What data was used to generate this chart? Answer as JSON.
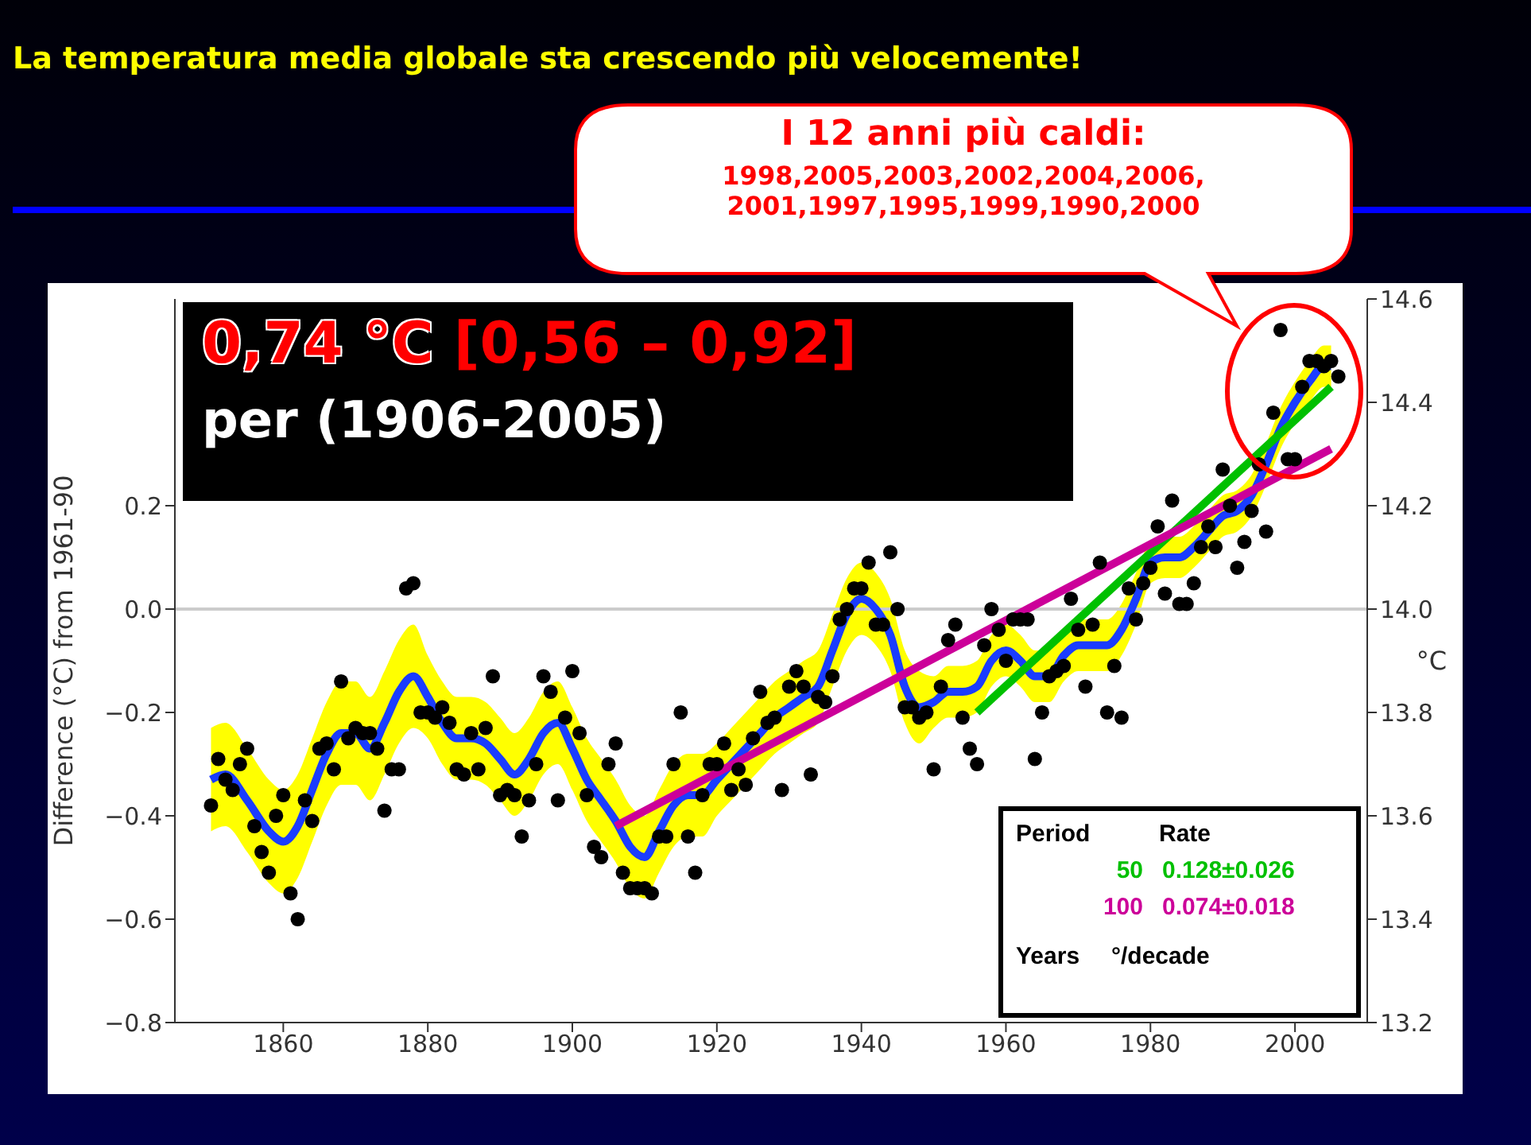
{
  "chart_data": {
    "type": "line",
    "title": "La temperatura media globale sta crescendo più velocemente!",
    "ylabel": "Difference (°C) from 1961-90",
    "y2label": "°C",
    "xlim": [
      1845,
      2010
    ],
    "xticks": [
      1860,
      1880,
      1900,
      1920,
      1940,
      1960,
      1980,
      2000
    ],
    "ylim": [
      -0.8,
      0.6
    ],
    "yticks": [
      {
        "value": -0.8,
        "label": "−0.8"
      },
      {
        "value": -0.6,
        "label": "−0.6"
      },
      {
        "value": -0.4,
        "label": "−0.4"
      },
      {
        "value": -0.2,
        "label": "−0.2"
      },
      {
        "value": 0,
        "label": "0.0"
      },
      {
        "value": 0.2,
        "label": "0.2"
      }
    ],
    "y2lim": [
      13.2,
      14.6
    ],
    "y2ticks": [
      13.2,
      13.4,
      13.6,
      13.8,
      {
        "value": 14,
        "label": "14.0"
      },
      14.2,
      14.4,
      14.6
    ],
    "ref_lines": [
      {
        "axis": "y",
        "value": 0,
        "color": "#cccccc"
      }
    ],
    "annotations": [
      "I 12 anni più caldi:",
      "1998,2005,2003,2002,2004,2006,",
      "2001,1997,1995,1999,1990,2000",
      "0,74 °C",
      "[0,56 – 0,92]",
      "per (1906-2005)",
      "Period",
      "Rate",
      "0.128±0.026",
      "0.074±0.018",
      "Years",
      "°/decade"
    ],
    "series": [
      {
        "type": "scatter",
        "color": "#000000",
        "marker": "circle",
        "x": [
          1850,
          1851,
          1852,
          1853,
          1854,
          1855,
          1856,
          1857,
          1858,
          1859,
          1860,
          1861,
          1862,
          1863,
          1864,
          1865,
          1866,
          1867,
          1868,
          1869,
          1870,
          1871,
          1872,
          1873,
          1874,
          1875,
          1876,
          1877,
          1878,
          1879,
          1880,
          1881,
          1882,
          1883,
          1884,
          1885,
          1886,
          1887,
          1888,
          1889,
          1890,
          1891,
          1892,
          1893,
          1894,
          1895,
          1896,
          1897,
          1898,
          1899,
          1900,
          1901,
          1902,
          1903,
          1904,
          1905,
          1906,
          1907,
          1908,
          1909,
          1910,
          1911,
          1912,
          1913,
          1914,
          1915,
          1916,
          1917,
          1918,
          1919,
          1920,
          1921,
          1922,
          1923,
          1924,
          1925,
          1926,
          1927,
          1928,
          1929,
          1930,
          1931,
          1932,
          1933,
          1934,
          1935,
          1936,
          1937,
          1938,
          1939,
          1940,
          1941,
          1942,
          1943,
          1944,
          1945,
          1946,
          1947,
          1948,
          1949,
          1950,
          1951,
          1952,
          1953,
          1954,
          1955,
          1956,
          1957,
          1958,
          1959,
          1960,
          1961,
          1962,
          1963,
          1964,
          1965,
          1966,
          1967,
          1968,
          1969,
          1970,
          1971,
          1972,
          1973,
          1974,
          1975,
          1976,
          1977,
          1978,
          1979,
          1980,
          1981,
          1982,
          1983,
          1984,
          1985,
          1986,
          1987,
          1988,
          1989,
          1990,
          1991,
          1992,
          1993,
          1994,
          1995,
          1996,
          1997,
          1998,
          1999,
          2000,
          2001,
          2002,
          2003,
          2004,
          2005,
          2006
        ],
        "values": [
          -0.38,
          -0.29,
          -0.33,
          -0.35,
          -0.3,
          -0.27,
          -0.42,
          -0.47,
          -0.51,
          -0.4,
          -0.36,
          -0.55,
          -0.6,
          -0.37,
          -0.41,
          -0.27,
          -0.26,
          -0.31,
          -0.14,
          -0.25,
          -0.23,
          -0.24,
          -0.24,
          -0.27,
          -0.39,
          -0.31,
          -0.31,
          0.04,
          0.05,
          -0.2,
          -0.2,
          -0.21,
          -0.19,
          -0.22,
          -0.31,
          -0.32,
          -0.24,
          -0.31,
          -0.23,
          -0.13,
          -0.36,
          -0.35,
          -0.36,
          -0.44,
          -0.37,
          -0.3,
          -0.13,
          -0.16,
          -0.37,
          -0.21,
          -0.12,
          -0.24,
          -0.36,
          -0.46,
          -0.48,
          -0.3,
          -0.26,
          -0.51,
          -0.54,
          -0.54,
          -0.54,
          -0.55,
          -0.44,
          -0.44,
          -0.3,
          -0.2,
          -0.44,
          -0.51,
          -0.36,
          -0.3,
          -0.3,
          -0.26,
          -0.35,
          -0.31,
          -0.34,
          -0.25,
          -0.16,
          -0.22,
          -0.21,
          -0.35,
          -0.15,
          -0.12,
          -0.15,
          -0.32,
          -0.17,
          -0.18,
          -0.13,
          -0.02,
          0.0,
          0.04,
          0.04,
          0.09,
          -0.03,
          -0.03,
          0.11,
          0.0,
          -0.19,
          -0.19,
          -0.21,
          -0.2,
          -0.31,
          -0.15,
          -0.06,
          -0.03,
          -0.21,
          -0.27,
          -0.3,
          -0.07,
          0.0,
          -0.04,
          -0.1,
          -0.02,
          -0.02,
          -0.02,
          -0.29,
          -0.2,
          -0.13,
          -0.12,
          -0.11,
          0.02,
          -0.04,
          -0.15,
          -0.03,
          0.09,
          -0.2,
          -0.11,
          -0.21,
          0.04,
          -0.02,
          0.05,
          0.08,
          0.16,
          0.03,
          0.21,
          0.01,
          0.01,
          0.05,
          0.12,
          0.16,
          0.12,
          0.27,
          0.2,
          0.08,
          0.13,
          0.19,
          0.28,
          0.15,
          0.38,
          0.54,
          0.29,
          0.29,
          0.43,
          0.48,
          0.48,
          0.47,
          0.48,
          0.45
        ]
      },
      {
        "type": "line",
        "color": "#1a3cff",
        "x": [
          1850,
          1852,
          1855,
          1858,
          1860,
          1862,
          1864,
          1866,
          1868,
          1870,
          1872,
          1874,
          1876,
          1878,
          1880,
          1882,
          1884,
          1886,
          1888,
          1890,
          1892,
          1894,
          1896,
          1898,
          1900,
          1902,
          1904,
          1906,
          1908,
          1910,
          1912,
          1914,
          1916,
          1918,
          1920,
          1922,
          1924,
          1926,
          1928,
          1930,
          1932,
          1934,
          1936,
          1938,
          1940,
          1942,
          1944,
          1946,
          1948,
          1950,
          1952,
          1954,
          1956,
          1958,
          1960,
          1962,
          1964,
          1966,
          1968,
          1970,
          1972,
          1974,
          1976,
          1978,
          1980,
          1982,
          1984,
          1986,
          1988,
          1990,
          1992,
          1994,
          1996,
          1998,
          2000,
          2002,
          2004,
          2005
        ],
        "values": [
          -0.33,
          -0.32,
          -0.37,
          -0.43,
          -0.45,
          -0.42,
          -0.35,
          -0.28,
          -0.24,
          -0.24,
          -0.27,
          -0.22,
          -0.16,
          -0.13,
          -0.17,
          -0.22,
          -0.25,
          -0.25,
          -0.26,
          -0.29,
          -0.32,
          -0.29,
          -0.24,
          -0.22,
          -0.27,
          -0.33,
          -0.37,
          -0.41,
          -0.46,
          -0.48,
          -0.43,
          -0.38,
          -0.36,
          -0.36,
          -0.33,
          -0.3,
          -0.27,
          -0.24,
          -0.21,
          -0.19,
          -0.17,
          -0.15,
          -0.08,
          -0.01,
          0.02,
          0.0,
          -0.05,
          -0.15,
          -0.19,
          -0.18,
          -0.16,
          -0.16,
          -0.15,
          -0.1,
          -0.08,
          -0.1,
          -0.13,
          -0.13,
          -0.09,
          -0.07,
          -0.07,
          -0.07,
          -0.04,
          0.02,
          0.09,
          0.1,
          0.1,
          0.12,
          0.15,
          0.18,
          0.19,
          0.22,
          0.28,
          0.35,
          0.4,
          0.44,
          0.47,
          0.47
        ],
        "lower": [
          -0.43,
          -0.42,
          -0.47,
          -0.53,
          -0.55,
          -0.52,
          -0.45,
          -0.38,
          -0.34,
          -0.34,
          -0.37,
          -0.32,
          -0.26,
          -0.23,
          -0.25,
          -0.3,
          -0.33,
          -0.33,
          -0.34,
          -0.37,
          -0.4,
          -0.37,
          -0.32,
          -0.3,
          -0.35,
          -0.41,
          -0.45,
          -0.49,
          -0.54,
          -0.56,
          -0.51,
          -0.46,
          -0.44,
          -0.44,
          -0.4,
          -0.37,
          -0.34,
          -0.31,
          -0.28,
          -0.26,
          -0.24,
          -0.22,
          -0.15,
          -0.08,
          -0.05,
          -0.07,
          -0.12,
          -0.22,
          -0.26,
          -0.23,
          -0.21,
          -0.21,
          -0.2,
          -0.15,
          -0.13,
          -0.15,
          -0.18,
          -0.18,
          -0.14,
          -0.12,
          -0.12,
          -0.12,
          -0.09,
          -0.03,
          0.05,
          0.06,
          0.06,
          0.08,
          0.11,
          0.14,
          0.15,
          0.18,
          0.24,
          0.31,
          0.36,
          0.4,
          0.43,
          0.43
        ],
        "upper": [
          -0.23,
          -0.22,
          -0.27,
          -0.33,
          -0.35,
          -0.32,
          -0.25,
          -0.18,
          -0.14,
          -0.14,
          -0.17,
          -0.12,
          -0.06,
          -0.03,
          -0.09,
          -0.14,
          -0.17,
          -0.17,
          -0.18,
          -0.21,
          -0.24,
          -0.21,
          -0.16,
          -0.14,
          -0.19,
          -0.25,
          -0.29,
          -0.33,
          -0.38,
          -0.4,
          -0.35,
          -0.3,
          -0.28,
          -0.28,
          -0.26,
          -0.23,
          -0.2,
          -0.17,
          -0.14,
          -0.12,
          -0.1,
          -0.08,
          -0.01,
          0.06,
          0.09,
          0.07,
          0.02,
          -0.08,
          -0.12,
          -0.13,
          -0.11,
          -0.11,
          -0.1,
          -0.05,
          -0.03,
          -0.05,
          -0.08,
          -0.08,
          -0.04,
          -0.02,
          -0.02,
          -0.02,
          0.01,
          0.07,
          0.13,
          0.14,
          0.14,
          0.16,
          0.19,
          0.22,
          0.23,
          0.26,
          0.32,
          0.39,
          0.44,
          0.48,
          0.51,
          0.51
        ]
      },
      {
        "type": "line",
        "name": "50",
        "color": "#00c000",
        "x": [
          1956,
          2005
        ],
        "values": [
          -0.2,
          0.43
        ]
      },
      {
        "type": "line",
        "name": "100",
        "color": "#cc0099",
        "x": [
          1906,
          2005
        ],
        "values": [
          -0.42,
          0.31
        ]
      }
    ]
  }
}
